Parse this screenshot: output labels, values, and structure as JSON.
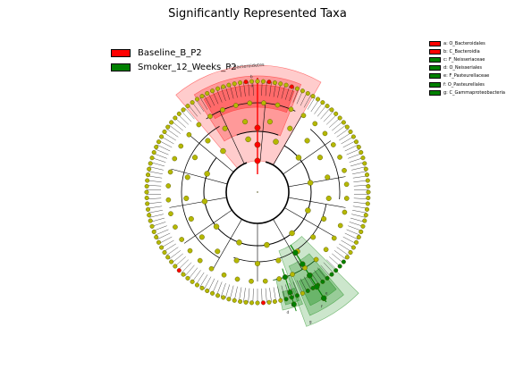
{
  "title": "Significantly Represented Taxa",
  "colors": {
    "baseline": "#ff0000",
    "smoker": "#008000",
    "node": "#b5b800",
    "node_stroke": "#4a4a00",
    "edge": "#000000"
  },
  "groups": [
    {
      "label": "Baseline_B_P2",
      "color": "#ff0000"
    },
    {
      "label": "Smoker_12_Weeks_P2",
      "color": "#008000"
    }
  ],
  "taxa_legend": [
    {
      "label": "a: O_Bacteroidales",
      "color": "#ff0000"
    },
    {
      "label": "b: C_Bacteroidia",
      "color": "#ff0000"
    },
    {
      "label": "c: F_Neisseriaceae",
      "color": "#008000"
    },
    {
      "label": "d: O_Neisseriales",
      "color": "#008000"
    },
    {
      "label": "e: F_Pasteurellaceae",
      "color": "#008000"
    },
    {
      "label": "f: O_Pasteurellales",
      "color": "#008000"
    },
    {
      "label": "g: C_Gammaproteobacteria",
      "color": "#008000"
    }
  ],
  "clade_labels": {
    "f_bacteroidetes": "P_Bacteroidetes",
    "a": "a",
    "b": "b",
    "c": "c",
    "d": "d",
    "e": "e",
    "f": "f",
    "g": "g"
  }
}
